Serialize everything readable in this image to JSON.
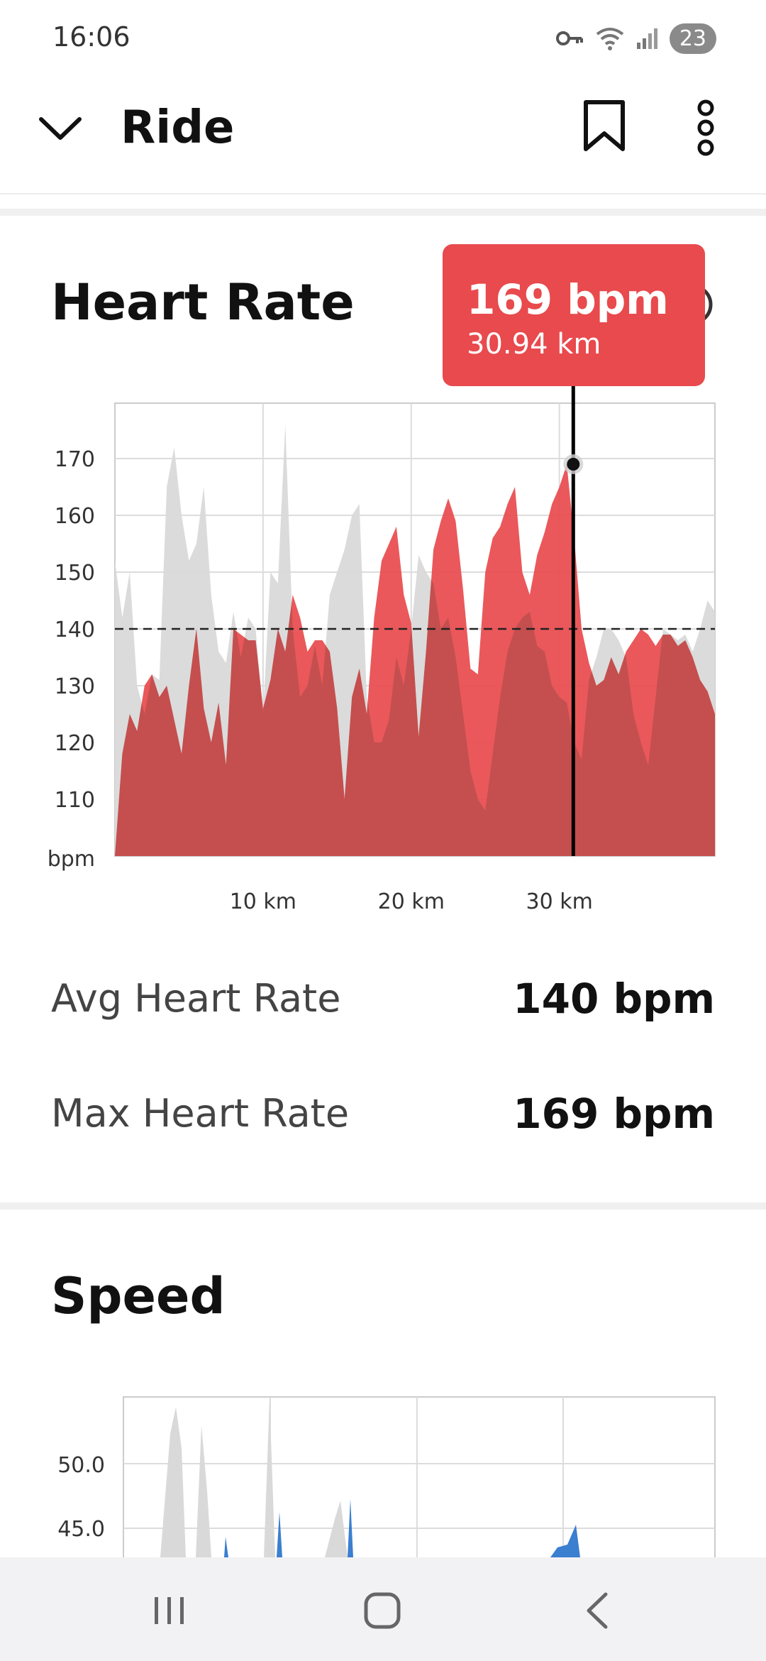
{
  "status_bar": {
    "time": "16:06",
    "battery": "23",
    "icons": [
      "vpn-key-icon",
      "wifi-icon",
      "signal-icon",
      "battery-icon"
    ]
  },
  "app_bar": {
    "title": "Ride",
    "icons": [
      "chevron-down-icon",
      "bookmark-icon",
      "more-vertical-icon"
    ]
  },
  "heart_rate": {
    "title": "Heart Rate",
    "tooltip": {
      "value": "169 bpm",
      "distance": "30.94 km"
    },
    "avg_label": "Avg Heart Rate",
    "avg_value": "140 bpm",
    "max_label": "Max Heart Rate",
    "max_value": "169 bpm"
  },
  "speed": {
    "title": "Speed"
  },
  "colors": {
    "accent_red": "#e84a4d",
    "dark_red": "#c94f4c",
    "gray_fill": "#d9d9d9",
    "speed_blue": "#3a7fd0"
  },
  "chart_data": [
    {
      "type": "area",
      "title": "Heart Rate",
      "ylabel": "bpm",
      "xlabel": "",
      "y_ticks": [
        "170",
        "160",
        "150",
        "140",
        "130",
        "120",
        "110",
        "bpm"
      ],
      "x_ticks": [
        "10 km",
        "20 km",
        "30 km"
      ],
      "xlim": [
        0,
        40.5
      ],
      "ylim": [
        100,
        178
      ],
      "avg_line": 140,
      "marker": {
        "x": 30.94,
        "y": 169
      },
      "series": [
        {
          "role": "current",
          "x": [
            0,
            0.5,
            1,
            1.5,
            2,
            2.5,
            3,
            3.5,
            4,
            4.5,
            5,
            5.5,
            6,
            6.5,
            7,
            7.5,
            8,
            8.5,
            9,
            9.5,
            10,
            10.5,
            11,
            11.5,
            12,
            12.5,
            13,
            13.5,
            14,
            14.5,
            15,
            15.5,
            16,
            16.5,
            17,
            17.5,
            18,
            18.5,
            19,
            19.5,
            20,
            20.5,
            21,
            21.5,
            22,
            22.5,
            23,
            23.5,
            24,
            24.5,
            25,
            25.5,
            26,
            26.5,
            27,
            27.5,
            28,
            28.5,
            29,
            29.5,
            30,
            30.5,
            31,
            31.5,
            32,
            32.5,
            33,
            33.5,
            34,
            34.5,
            35,
            35.5,
            36,
            36.5,
            37,
            37.5,
            38,
            38.5,
            39,
            39.5,
            40,
            40.5
          ],
          "values": [
            100,
            118,
            125,
            122,
            130,
            132,
            128,
            130,
            124,
            118,
            130,
            140,
            126,
            120,
            127,
            116,
            140,
            139,
            138,
            138,
            126,
            131,
            140,
            136,
            146,
            142,
            136,
            138,
            138,
            136,
            126,
            110,
            128,
            133,
            125,
            142,
            152,
            155,
            158,
            146,
            141,
            121,
            136,
            154,
            159,
            163,
            159,
            147,
            133,
            132,
            150,
            156,
            158,
            162,
            165,
            150,
            146,
            153,
            157,
            162,
            165,
            169,
            156,
            140,
            134,
            130,
            131,
            135,
            132,
            136,
            138,
            140,
            139,
            137,
            139,
            139,
            137,
            138,
            135,
            131,
            129,
            125
          ]
        },
        {
          "role": "comparison",
          "x": [
            0,
            0.5,
            1,
            1.5,
            2,
            2.5,
            3,
            3.5,
            4,
            4.5,
            5,
            5.5,
            6,
            6.5,
            7,
            7.5,
            8,
            8.5,
            9,
            9.5,
            10,
            10.5,
            11,
            11.5,
            12,
            12.5,
            13,
            13.5,
            14,
            14.5,
            15,
            15.5,
            16,
            16.5,
            17,
            17.5,
            18,
            18.5,
            19,
            19.5,
            20,
            20.5,
            21,
            21.5,
            22,
            22.5,
            23,
            23.5,
            24,
            24.5,
            25,
            25.5,
            26,
            26.5,
            27,
            27.5,
            28,
            28.5,
            29,
            29.5,
            30,
            30.5,
            31,
            31.5,
            32,
            32.5,
            33,
            33.5,
            34,
            34.5,
            35,
            35.5,
            36,
            36.5,
            37,
            37.5,
            38,
            38.5,
            39,
            39.5,
            40,
            40.5
          ],
          "values": [
            152,
            142,
            150,
            130,
            125,
            132,
            131,
            165,
            172,
            160,
            152,
            155,
            165,
            146,
            136,
            134,
            143,
            135,
            142,
            140,
            125,
            150,
            148,
            176,
            140,
            128,
            130,
            137,
            130,
            146,
            150,
            154,
            160,
            162,
            128,
            120,
            120,
            124,
            135,
            130,
            140,
            153,
            150,
            148,
            140,
            142,
            135,
            125,
            115,
            110,
            108,
            118,
            128,
            136,
            140,
            142,
            143,
            137,
            136,
            130,
            128,
            127,
            120,
            117,
            131,
            135,
            140,
            140,
            138,
            135,
            125,
            120,
            116,
            128,
            140,
            139,
            138,
            139,
            136,
            140,
            145,
            143
          ]
        }
      ]
    },
    {
      "type": "area",
      "title": "Speed",
      "y_ticks": [
        "50.0",
        "45.0"
      ],
      "note": "partially visible, scrolled off bottom"
    }
  ]
}
